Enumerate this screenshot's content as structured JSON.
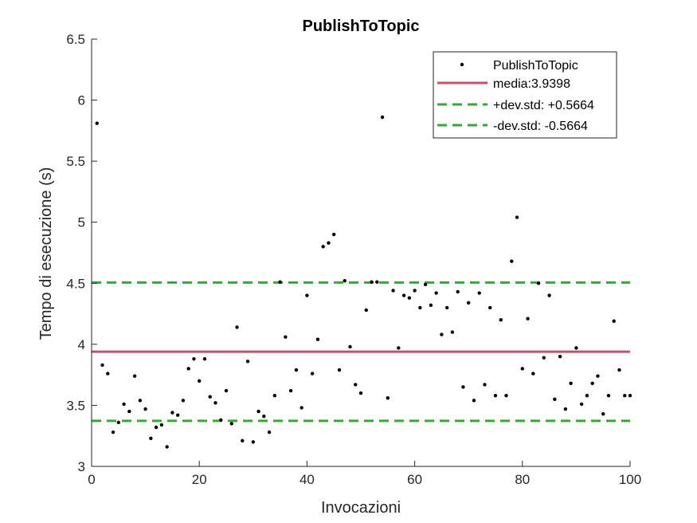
{
  "chart_data": {
    "type": "scatter",
    "title": "PublishToTopic",
    "xlabel": "Invocazioni",
    "ylabel": "Tempo di esecuzione (s)",
    "xlim": [
      0,
      100
    ],
    "ylim": [
      3,
      6.5
    ],
    "xticks": [
      0,
      20,
      40,
      60,
      80,
      100
    ],
    "yticks": [
      3,
      3.5,
      4,
      4.5,
      5,
      5.5,
      6,
      6.5
    ],
    "grid": false,
    "legend_position": "top-right",
    "colors": {
      "points": "#000000",
      "mean": "#c1546a",
      "std": "#3aa637",
      "axis": "#262626"
    },
    "series": [
      {
        "name": "PublishToTopic",
        "x": [
          1,
          2,
          3,
          4,
          5,
          6,
          7,
          8,
          9,
          10,
          11,
          12,
          13,
          14,
          15,
          16,
          17,
          18,
          19,
          20,
          21,
          22,
          23,
          24,
          25,
          26,
          27,
          28,
          29,
          30,
          31,
          32,
          33,
          34,
          35,
          36,
          37,
          38,
          39,
          40,
          41,
          42,
          43,
          44,
          45,
          46,
          47,
          48,
          49,
          50,
          51,
          52,
          53,
          54,
          55,
          56,
          57,
          58,
          59,
          60,
          61,
          62,
          63,
          64,
          65,
          66,
          67,
          68,
          69,
          70,
          71,
          72,
          73,
          74,
          75,
          76,
          77,
          78,
          79,
          80,
          81,
          82,
          83,
          84,
          85,
          86,
          87,
          88,
          89,
          90,
          91,
          92,
          93,
          94,
          95,
          96,
          97,
          98,
          99,
          100
        ],
        "y": [
          5.81,
          3.83,
          3.76,
          3.28,
          3.36,
          3.51,
          3.45,
          3.74,
          3.54,
          3.47,
          3.23,
          3.32,
          3.34,
          3.16,
          3.44,
          3.42,
          3.54,
          3.8,
          3.88,
          3.7,
          3.88,
          3.57,
          3.52,
          3.38,
          3.62,
          3.35,
          4.14,
          3.21,
          3.86,
          3.2,
          3.45,
          3.41,
          3.28,
          3.58,
          4.51,
          4.06,
          3.62,
          3.79,
          3.48,
          4.4,
          3.76,
          4.04,
          4.8,
          4.83,
          4.9,
          3.79,
          4.52,
          3.98,
          3.67,
          3.6,
          4.28,
          4.51,
          4.51,
          5.86,
          3.56,
          4.44,
          3.97,
          4.4,
          4.38,
          4.44,
          4.3,
          4.49,
          4.32,
          4.42,
          4.08,
          4.3,
          4.1,
          4.43,
          3.65,
          4.34,
          3.54,
          4.42,
          3.67,
          4.3,
          3.58,
          4.2,
          3.58,
          4.68,
          5.04,
          3.8,
          4.21,
          3.76,
          4.5,
          3.89,
          4.4,
          3.55,
          3.9,
          3.47,
          3.68,
          3.97,
          3.51,
          3.58,
          3.68,
          3.74,
          3.43,
          3.58,
          4.19,
          3.79,
          3.58,
          3.58
        ]
      }
    ],
    "reference_lines": [
      {
        "name": "media:3.9398",
        "y": 3.9398,
        "style": "solid"
      },
      {
        "name": "+dev.std: +0.5664",
        "y": 4.5062,
        "style": "dashed"
      },
      {
        "name": "-dev.std: -0.5664",
        "y": 3.3734,
        "style": "dashed"
      }
    ]
  }
}
